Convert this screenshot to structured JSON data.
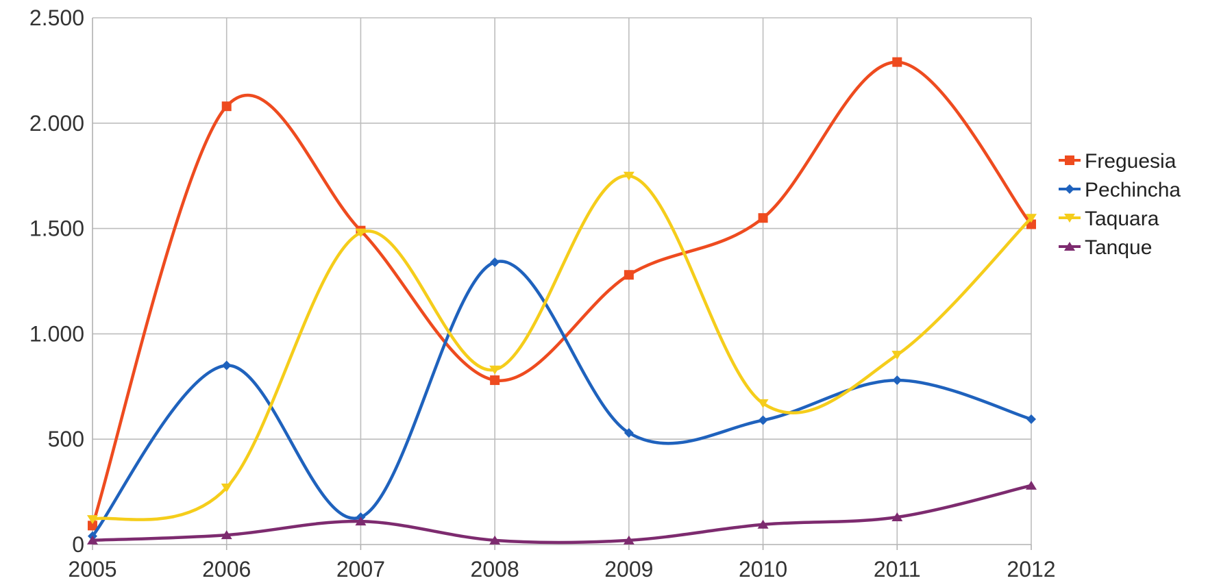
{
  "chart_data": {
    "type": "line",
    "title": "",
    "xlabel": "",
    "ylabel": "",
    "categories": [
      "2005",
      "2006",
      "2007",
      "2008",
      "2009",
      "2010",
      "2011",
      "2012"
    ],
    "ylim": [
      0,
      2500
    ],
    "y_ticks": [
      0,
      500,
      1000,
      1500,
      2000,
      2500
    ],
    "y_tick_labels": [
      "0",
      "500",
      "1.000",
      "1.500",
      "2.000",
      "2.500"
    ],
    "grid": true,
    "smooth": true,
    "legend_position": "right",
    "series": [
      {
        "name": "Freguesia",
        "color": "#ee4b1f",
        "marker": "square",
        "values": [
          90,
          2080,
          1490,
          780,
          1280,
          1550,
          2290,
          1520
        ]
      },
      {
        "name": "Pechincha",
        "color": "#1f62bd",
        "marker": "diamond",
        "values": [
          40,
          850,
          130,
          1340,
          530,
          590,
          780,
          595
        ]
      },
      {
        "name": "Taquara",
        "color": "#f5cd1b",
        "marker": "triangle-down",
        "values": [
          120,
          270,
          1480,
          830,
          1750,
          670,
          900,
          1550
        ]
      },
      {
        "name": "Tanque",
        "color": "#7d2b6f",
        "marker": "triangle-up",
        "values": [
          20,
          45,
          110,
          20,
          20,
          95,
          130,
          280
        ]
      }
    ]
  }
}
